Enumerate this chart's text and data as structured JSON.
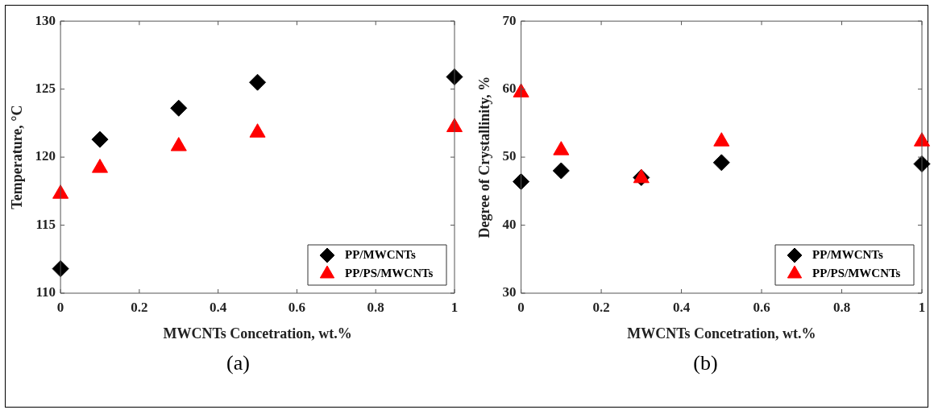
{
  "chart_data": [
    {
      "type": "scatter",
      "xlabel": "MWCNTs Concetration, wt.%",
      "ylabel": "Temperature, °C",
      "xlim": [
        0,
        1
      ],
      "xticks": [
        0,
        0.2,
        0.4,
        0.6,
        0.8,
        1
      ],
      "ylim": [
        110,
        130
      ],
      "yticks": [
        110,
        115,
        120,
        125,
        130
      ],
      "legend": "bottom right",
      "annotations": [
        "(a)"
      ],
      "series": [
        {
          "name": "PP/MWCNTs",
          "color": "#000000",
          "marker": "diamond",
          "x": [
            0,
            0.1,
            0.3,
            0.5,
            1
          ],
          "values": [
            111.8,
            121.3,
            123.6,
            125.5,
            125.9
          ]
        },
        {
          "name": "PP/PS/MWCNTs",
          "color": "#ff0000",
          "marker": "triangle",
          "x": [
            0,
            0.1,
            0.3,
            0.5,
            1
          ],
          "values": [
            117.3,
            119.2,
            120.8,
            121.8,
            122.2
          ]
        }
      ]
    },
    {
      "type": "scatter",
      "xlabel": "MWCNTs Concetration, wt.%",
      "ylabel": "Degree of Crystallinity, %",
      "xlim": [
        0,
        1
      ],
      "xticks": [
        0,
        0.2,
        0.4,
        0.6,
        0.8,
        1
      ],
      "ylim": [
        30,
        70
      ],
      "yticks": [
        30,
        40,
        50,
        60,
        70
      ],
      "legend": "bottom right",
      "annotations": [
        "(b)"
      ],
      "series": [
        {
          "name": "PP/MWCNTs",
          "color": "#000000",
          "marker": "diamond",
          "x": [
            0,
            0.1,
            0.3,
            0.5,
            1
          ],
          "values": [
            46.4,
            48.0,
            47.0,
            49.2,
            49.0
          ]
        },
        {
          "name": "PP/PS/MWCNTs",
          "color": "#ff0000",
          "marker": "triangle",
          "x": [
            0,
            0.1,
            0.3,
            0.5,
            1
          ],
          "values": [
            59.5,
            51.0,
            46.9,
            52.3,
            52.3
          ]
        }
      ]
    }
  ]
}
